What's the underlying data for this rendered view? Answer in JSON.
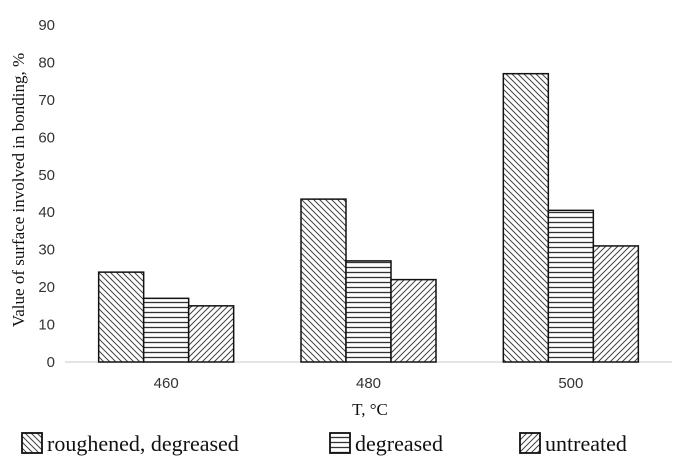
{
  "chart_data": {
    "type": "bar",
    "categories": [
      "460",
      "480",
      "500"
    ],
    "series": [
      {
        "name": "roughened, degreased",
        "values": [
          24,
          43.5,
          77
        ],
        "pattern": "diag-back"
      },
      {
        "name": "degreased",
        "values": [
          17,
          27,
          40.5
        ],
        "pattern": "horizontal"
      },
      {
        "name": "untreated",
        "values": [
          15,
          22,
          31
        ],
        "pattern": "diag-fwd"
      }
    ],
    "xlabel": "T, °C",
    "ylabel": "Value of surface involved in bonding, %",
    "ylim": [
      0,
      90
    ],
    "yticks": [
      "0",
      "10",
      "20",
      "30",
      "40",
      "50",
      "60",
      "70",
      "80",
      "90"
    ],
    "grid": false,
    "legend": "bottom",
    "colors": {
      "bar_stroke": "#111111",
      "hatch": "#444444",
      "fill": "#ffffff",
      "axis": "#c8c8c8"
    }
  }
}
